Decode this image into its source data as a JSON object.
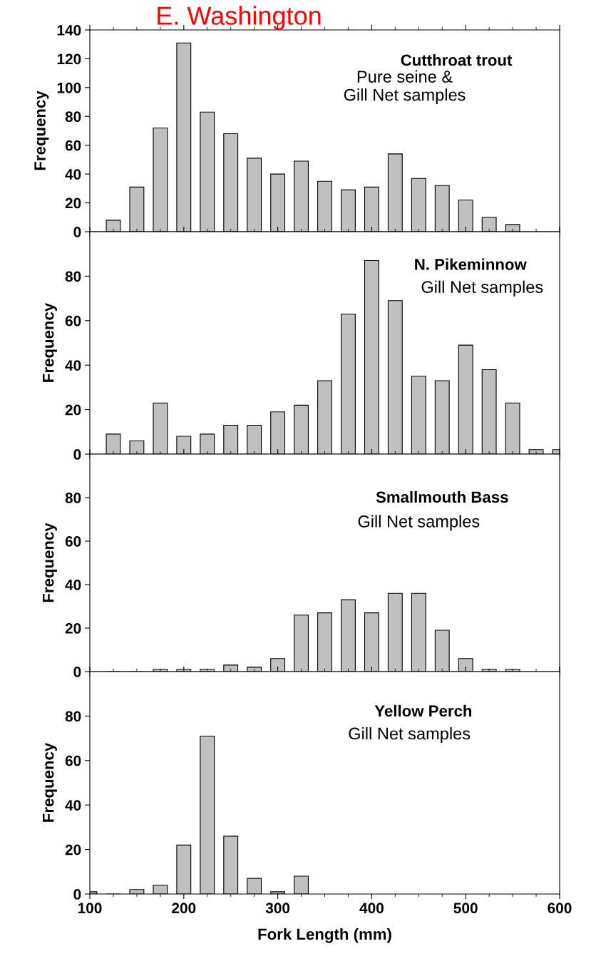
{
  "chart_data": [
    {
      "type": "bar",
      "title": "E. Washington",
      "ylabel": "Frequency",
      "annotations": [
        "Cutthroat trout",
        "Pure seine &\nGill Net samples"
      ],
      "x": [
        125,
        150,
        175,
        200,
        225,
        250,
        275,
        300,
        325,
        350,
        375,
        400,
        425,
        450,
        475,
        500,
        525,
        550
      ],
      "values": [
        8,
        31,
        72,
        131,
        83,
        68,
        51,
        40,
        49,
        35,
        29,
        31,
        54,
        37,
        32,
        22,
        10,
        5
      ],
      "color": "#c0c0c0",
      "xlim": [
        100,
        600
      ],
      "ylim": [
        0,
        140
      ],
      "yticks": [
        0,
        20,
        40,
        60,
        80,
        100,
        120,
        140
      ],
      "tick_labels": "y",
      "grid": false,
      "legend": false
    },
    {
      "type": "bar",
      "ylabel": "Frequency",
      "annotations": [
        "N. Pikeminnow",
        "Gill Net samples"
      ],
      "x": [
        125,
        150,
        175,
        200,
        225,
        250,
        275,
        300,
        325,
        350,
        375,
        400,
        425,
        450,
        475,
        500,
        525,
        550,
        575,
        600
      ],
      "values": [
        9,
        6,
        23,
        8,
        9,
        13,
        13,
        19,
        22,
        33,
        63,
        87,
        69,
        35,
        33,
        49,
        38,
        23,
        2,
        2
      ],
      "color": "#c0c0c0",
      "xlim": [
        100,
        600
      ],
      "ylim": [
        0,
        100
      ],
      "yticks": [
        0,
        20,
        40,
        60,
        80
      ],
      "tick_labels": "y",
      "grid": false,
      "legend": false
    },
    {
      "type": "bar",
      "ylabel": "Frequency",
      "annotations": [
        "Smallmouth Bass",
        "Gill Net samples"
      ],
      "x": [
        125,
        150,
        175,
        200,
        225,
        250,
        275,
        300,
        325,
        350,
        375,
        400,
        425,
        450,
        475,
        500,
        525,
        550
      ],
      "values": [
        0,
        0,
        1,
        1,
        1,
        3,
        2,
        6,
        26,
        27,
        33,
        27,
        36,
        36,
        19,
        6,
        1,
        1
      ],
      "color": "#c0c0c0",
      "xlim": [
        100,
        600
      ],
      "ylim": [
        0,
        100
      ],
      "yticks": [
        0,
        20,
        40,
        60,
        80
      ],
      "tick_labels": "y",
      "grid": false,
      "legend": false
    },
    {
      "type": "bar",
      "ylabel": "Frequency",
      "xlabel": "Fork Length (mm)",
      "annotations": [
        "Yellow Perch",
        "Gill Net samples"
      ],
      "x": [
        100,
        125,
        150,
        175,
        200,
        225,
        250,
        275,
        300,
        325
      ],
      "values": [
        1,
        0,
        2,
        4,
        22,
        71,
        26,
        7,
        1,
        8
      ],
      "color": "#c0c0c0",
      "xlim": [
        100,
        600
      ],
      "ylim": [
        0,
        100
      ],
      "yticks": [
        0,
        20,
        40,
        60,
        80
      ],
      "xticks": [
        100,
        200,
        300,
        400,
        500,
        600
      ],
      "grid": false,
      "legend": false
    }
  ]
}
